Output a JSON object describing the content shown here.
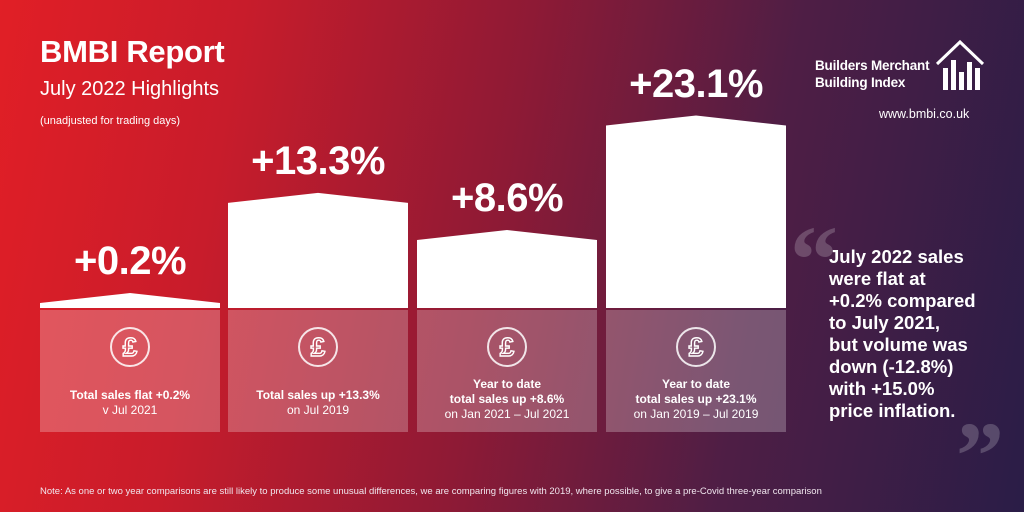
{
  "header": {
    "title": "BMBI Report",
    "subtitle": "July 2022 Highlights",
    "subnote": "(unadjusted for trading days)"
  },
  "brand": {
    "line1": "Builders Merchant",
    "line2": "Building Index",
    "url": "www.bmbi.co.uk",
    "logo_icon": "house-bars-icon"
  },
  "chart_data": {
    "type": "bar",
    "categories": [
      "Total sales flat +0.2% v Jul 2021",
      "Total sales up +13.3% on Jul 2019",
      "Year to date total sales up +8.6% on Jan 2021 – Jul 2021",
      "Year to date total sales up +23.1% on Jan 2019 – Jul 2019"
    ],
    "values": [
      0.2,
      13.3,
      8.6,
      23.1
    ],
    "value_labels": [
      "+0.2%",
      "+13.3%",
      "+8.6%",
      "+23.1%"
    ],
    "unit": "%",
    "ylim": [
      0,
      25
    ],
    "grid": false,
    "legend": "none"
  },
  "cards": [
    {
      "line1": "Total sales flat +0.2%",
      "line2": "v Jul 2021",
      "icon": "pound-icon"
    },
    {
      "line1": "Total sales up +13.3%",
      "line2": "on Jul 2019",
      "icon": "pound-icon"
    },
    {
      "line1": "Year to date",
      "line2": "total sales up +8.6%",
      "line3": "on Jan 2021 – Jul 2021",
      "icon": "pound-icon"
    },
    {
      "line1": "Year to date",
      "line2": "total sales up +23.1%",
      "line3": "on Jan 2019 – Jul 2019",
      "icon": "pound-icon"
    }
  ],
  "quote": {
    "lines": [
      "July 2022 sales",
      "were flat at",
      "+0.2% compared",
      "to July 2021,",
      "but volume was",
      "down (-12.8%)",
      "with +15.0%",
      "price inflation."
    ]
  },
  "footer": {
    "note": "Note: As one or two year comparisons are still likely to produce some unusual differences, we are comparing figures with 2019, where possible, to give a pre-Covid three-year comparison"
  }
}
